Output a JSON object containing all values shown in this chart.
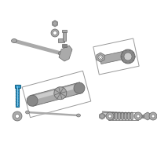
{
  "bg_color": "#ffffff",
  "part_color": "#aaaaaa",
  "part_dark": "#888888",
  "part_light": "#cccccc",
  "highlight_bolt_color": "#3399cc",
  "highlight_bolt_border": "#1a6688",
  "line_color": "#666666",
  "box_line_color": "#999999",
  "figsize": [
    2.0,
    2.0
  ],
  "dpi": 100
}
